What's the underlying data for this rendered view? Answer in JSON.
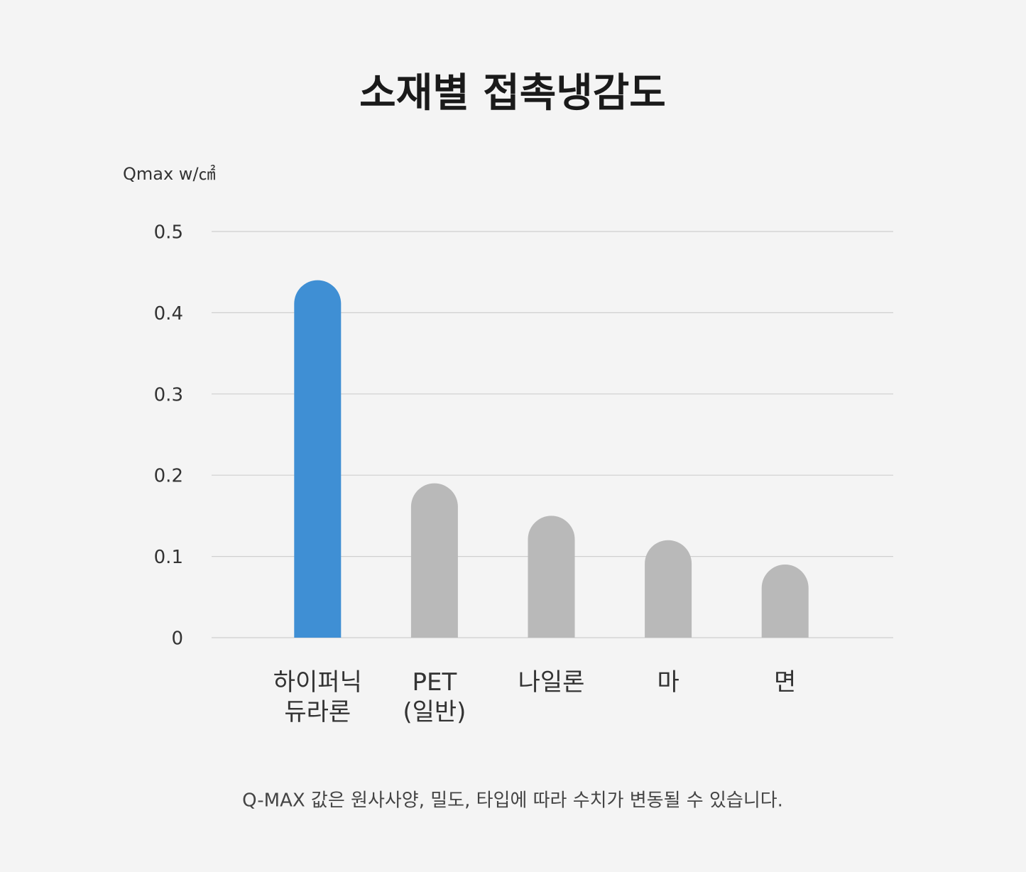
{
  "chart_data": {
    "type": "bar",
    "title": "소재별 접촉냉감도",
    "y_label": "Qmax w/㎠",
    "categories": [
      "하이퍼닉\n듀라론",
      "PET\n(일반)",
      "나일론",
      "마",
      "면"
    ],
    "values": [
      0.44,
      0.19,
      0.15,
      0.12,
      0.09
    ],
    "colors": [
      "#3f8fd4",
      "#b9b9b9",
      "#b9b9b9",
      "#b9b9b9",
      "#b9b9b9"
    ],
    "ylim": [
      0,
      0.5
    ],
    "yticks": [
      0,
      0.1,
      0.2,
      0.3,
      0.4,
      0.5
    ],
    "grid": true,
    "note": "Q-MAX 값은 원사사양, 밀도, 타입에 따라 수치가 변동될 수 있습니다."
  }
}
